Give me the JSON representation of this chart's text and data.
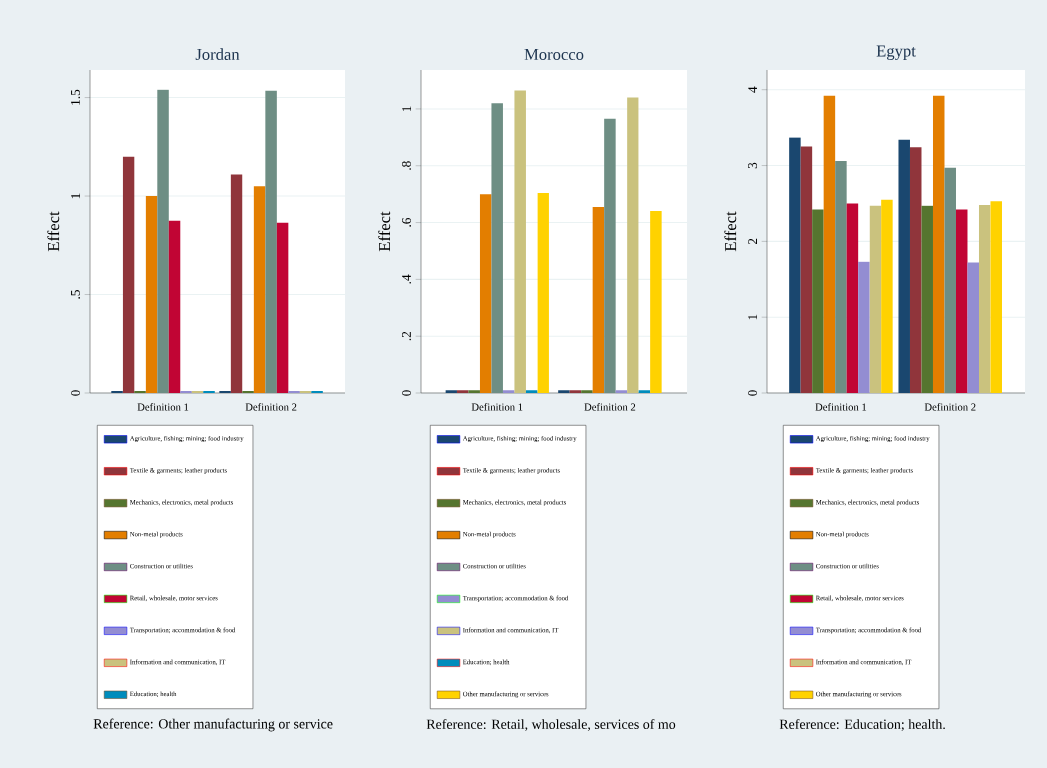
{
  "chart_data": [
    {
      "type": "bar",
      "title": "Jordan",
      "ylabel": "Effect",
      "categories": [
        "Definition 1",
        "Definition 2"
      ],
      "ylim": [
        0,
        1.64
      ],
      "yticks": [
        0,
        {
          "value": 0.5,
          "label": ".5"
        },
        1,
        1.5
      ],
      "grid": "y",
      "legend": "bottom",
      "annotations": [
        "Reference: Other manufacturing or service"
      ],
      "series": [
        {
          "name": "Agriculture, fishing; mining; food industry",
          "color": "#1a476f",
          "values": [
            0.01,
            0.01
          ]
        },
        {
          "name": "Textile & garments; leather products",
          "color": "#90353b",
          "values": [
            1.2,
            1.11
          ]
        },
        {
          "name": "Mechanics, electronics, metal products",
          "color": "#55752f",
          "values": [
            0.01,
            0.01
          ]
        },
        {
          "name": "Non-metal products",
          "color": "#e37e00",
          "values": [
            1.0,
            1.05
          ]
        },
        {
          "name": "Construction or utilities",
          "color": "#6e8e84",
          "values": [
            1.54,
            1.535
          ]
        },
        {
          "name": "Retail, wholesale, motor services",
          "color": "#c10534",
          "values": [
            0.875,
            0.865
          ]
        },
        {
          "name": "Transportation; accommodation & food",
          "color": "#938dd2",
          "values": [
            0.01,
            0.01
          ]
        },
        {
          "name": "Information and communication, IT",
          "color": "#cac27e",
          "values": [
            0.01,
            0.01
          ]
        },
        {
          "name": "Education; health",
          "color": "#008cbc",
          "values": [
            0.01,
            0.01
          ]
        }
      ]
    },
    {
      "type": "bar",
      "title": "Morocco",
      "ylabel": "Effect",
      "categories": [
        "Definition 1",
        "Definition 2"
      ],
      "ylim": [
        0,
        1.137
      ],
      "yticks": [
        0,
        {
          "value": 0.2,
          "label": ".2"
        },
        {
          "value": 0.4,
          "label": ".4"
        },
        {
          "value": 0.6,
          "label": ".6"
        },
        {
          "value": 0.8,
          "label": ".8"
        },
        1
      ],
      "grid": "y",
      "legend": "bottom",
      "annotations": [
        "Reference: Retail, wholesale, services of mo"
      ],
      "series": [
        {
          "name": "Agriculture, fishing; mining; food industry",
          "color": "#1a476f",
          "values": [
            0.01,
            0.01
          ]
        },
        {
          "name": "Textile & garments; leather products",
          "color": "#90353b",
          "values": [
            0.01,
            0.01
          ]
        },
        {
          "name": "Mechanics, electronics, metal products",
          "color": "#55752f",
          "values": [
            0.01,
            0.01
          ]
        },
        {
          "name": "Non-metal products",
          "color": "#e37e00",
          "values": [
            0.7,
            0.655
          ]
        },
        {
          "name": "Construction or utilities",
          "color": "#6e8e84",
          "values": [
            1.02,
            0.965
          ]
        },
        {
          "name": "Transportation; accommodation & food",
          "color": "#938dd2",
          "values": [
            0.01,
            0.01
          ]
        },
        {
          "name": "Information and communication, IT",
          "color": "#cac27e",
          "values": [
            1.065,
            1.04
          ]
        },
        {
          "name": "Education; health",
          "color": "#008cbc",
          "values": [
            0.01,
            0.01
          ]
        },
        {
          "name": "Other manufacturing or services",
          "color": "#ffd200",
          "values": [
            0.704,
            0.641
          ]
        }
      ]
    },
    {
      "type": "bar",
      "title": "Egypt",
      "ylabel": "Effect",
      "categories": [
        "Definition 1",
        "Definition 2"
      ],
      "ylim": [
        0,
        4.26
      ],
      "yticks": [
        0,
        1,
        2,
        3,
        4
      ],
      "grid": "y",
      "legend": "bottom",
      "annotations": [
        "Reference: Education; health."
      ],
      "series": [
        {
          "name": "Agriculture, fishing; mining; food industry",
          "color": "#1a476f",
          "values": [
            3.37,
            3.34
          ]
        },
        {
          "name": "Textile & garments; leather products",
          "color": "#90353b",
          "values": [
            3.25,
            3.24
          ]
        },
        {
          "name": "Mechanics, electronics, metal products",
          "color": "#55752f",
          "values": [
            2.42,
            2.47
          ]
        },
        {
          "name": "Non-metal products",
          "color": "#e37e00",
          "values": [
            3.92,
            3.92
          ]
        },
        {
          "name": "Construction or utilities",
          "color": "#6e8e84",
          "values": [
            3.06,
            2.97
          ]
        },
        {
          "name": "Retail, wholesale, motor services",
          "color": "#c10534",
          "values": [
            2.5,
            2.42
          ]
        },
        {
          "name": "Transportation; accommodation & food",
          "color": "#938dd2",
          "values": [
            1.73,
            1.72
          ]
        },
        {
          "name": "Information and communication, IT",
          "color": "#cac27e",
          "values": [
            2.47,
            2.48
          ]
        },
        {
          "name": "Other manufacturing or services",
          "color": "#ffd200",
          "values": [
            2.55,
            2.53
          ]
        }
      ]
    }
  ]
}
